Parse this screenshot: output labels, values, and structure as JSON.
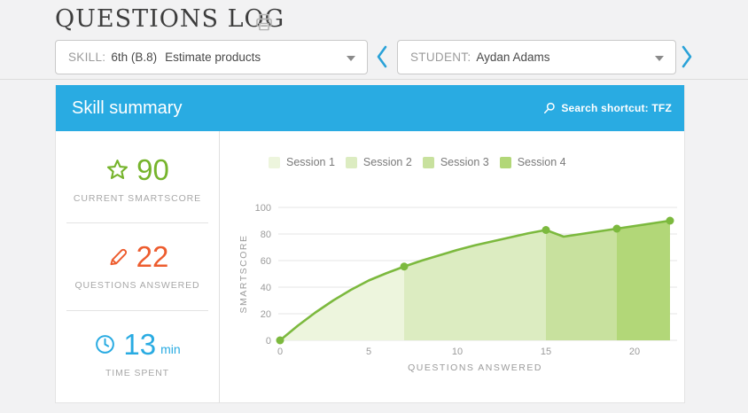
{
  "page": {
    "title": "QUESTIONS LOG"
  },
  "filters": {
    "skill": {
      "label": "SKILL:",
      "code": "6th (B.8)",
      "name": "Estimate products"
    },
    "student": {
      "label": "STUDENT:",
      "name": "Aydan Adams"
    }
  },
  "panel": {
    "title": "Skill summary",
    "search_shortcut": "Search shortcut: TFZ",
    "header_color": "#29abe2"
  },
  "stats": {
    "smartscore": {
      "value": "90",
      "label": "CURRENT SMARTSCORE",
      "color": "#76b42c"
    },
    "questions": {
      "value": "22",
      "label": "QUESTIONS ANSWERED",
      "color": "#ed5c2e"
    },
    "time": {
      "value": "13",
      "unit": "min",
      "label": "TIME SPENT",
      "color": "#29abe2"
    }
  },
  "chart_data": {
    "type": "area",
    "title": "",
    "xlabel": "QUESTIONS ANSWERED",
    "ylabel": "SMARTSCORE",
    "xlim": [
      0,
      22
    ],
    "ylim": [
      0,
      100
    ],
    "xticks": [
      0,
      5,
      10,
      15,
      20
    ],
    "yticks": [
      0,
      20,
      40,
      60,
      80,
      100
    ],
    "grid": true,
    "legend_position": "top",
    "x": [
      0,
      1,
      2,
      3,
      4,
      5,
      6,
      7,
      8,
      9,
      10,
      11,
      12,
      13,
      14,
      15,
      16,
      17,
      18,
      19,
      20,
      21,
      22
    ],
    "y": [
      0,
      11,
      21,
      30,
      38,
      45,
      50.5,
      55.5,
      60,
      64,
      68,
      71.5,
      74.5,
      77.5,
      80.5,
      83,
      78,
      80,
      82,
      84,
      86,
      88,
      90
    ],
    "dots": [
      [
        0,
        0
      ],
      [
        7,
        55.5
      ],
      [
        15,
        83
      ],
      [
        19,
        84
      ],
      [
        22,
        90
      ]
    ],
    "line_color": "#7cb93e",
    "grid_color": "#e4e4e4",
    "sessions": [
      {
        "label": "Session 1",
        "x_start": 0,
        "x_end": 7,
        "color": "#edf5dd"
      },
      {
        "label": "Session 2",
        "x_start": 7,
        "x_end": 15,
        "color": "#dcecc1"
      },
      {
        "label": "Session 3",
        "x_start": 15,
        "x_end": 19,
        "color": "#c8e19e"
      },
      {
        "label": "Session 4",
        "x_start": 19,
        "x_end": 22,
        "color": "#b2d778"
      }
    ]
  }
}
